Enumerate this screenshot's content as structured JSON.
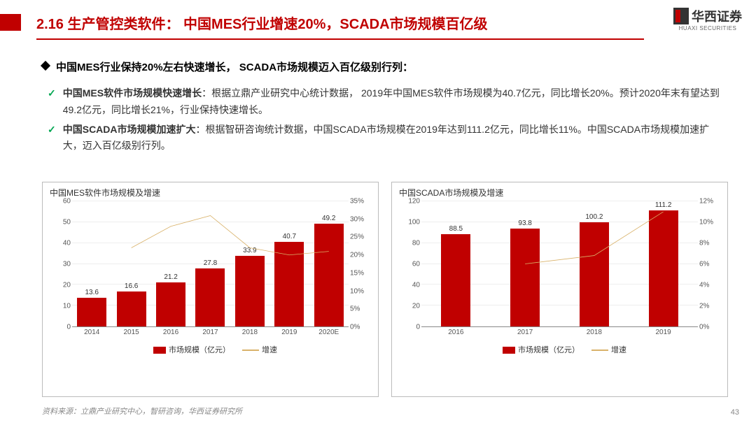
{
  "header": {
    "title": "2.16 生产管控类软件： 中国MES行业增速20%，SCADA市场规模百亿级",
    "logo_text": "华西证券",
    "logo_sub": "HUAXI SECURITIES"
  },
  "headline": "中国MES行业保持20%左右快速增长， SCADA市场规模迈入百亿级别行列：",
  "bullets": [
    {
      "bold": "中国MES软件市场规模快速增长",
      "rest": "：根据立鼎产业研究中心统计数据， 2019年中国MES软件市场规模为40.7亿元，同比增长20%。预计2020年末有望达到49.2亿元，同比增长21%，行业保持快速增长。"
    },
    {
      "bold": "中国SCADA市场规模加速扩大",
      "rest": "：根据智研咨询统计数据，中国SCADA市场规模在2019年达到111.2亿元，同比增长11%。中国SCADA市场规模加速扩大，迈入百亿级别行列。"
    }
  ],
  "chart_left": {
    "type": "bar+line",
    "title": "中国MES软件市场规模及增速",
    "categories": [
      "2014",
      "2015",
      "2016",
      "2017",
      "2018",
      "2019",
      "2020E"
    ],
    "bar_values": [
      13.6,
      16.6,
      21.2,
      27.8,
      33.9,
      40.7,
      49.2
    ],
    "bar_color": "#c00000",
    "y_left": {
      "min": 0,
      "max": 60,
      "step": 10
    },
    "line_values": [
      null,
      22,
      28,
      31,
      22,
      20,
      21
    ],
    "line_color": "#d9b26a",
    "y_right": {
      "min": 0,
      "max": 35,
      "step": 5,
      "suffix": "%"
    },
    "legend_bar": "市场规模（亿元）",
    "legend_line": "增速"
  },
  "chart_right": {
    "type": "bar+line",
    "title": "中国SCADA市场规模及增速",
    "categories": [
      "2016",
      "2017",
      "2018",
      "2019"
    ],
    "bar_values": [
      88.5,
      93.8,
      100.2,
      111.2
    ],
    "bar_color": "#c00000",
    "y_left": {
      "min": 0,
      "max": 120,
      "step": 20
    },
    "line_values": [
      null,
      6,
      6.8,
      11
    ],
    "line_color": "#d9b26a",
    "y_right": {
      "min": 0,
      "max": 12,
      "step": 2,
      "suffix": "%"
    },
    "legend_bar": "市场规模（亿元）",
    "legend_line": "增速"
  },
  "source": "资料来源：立鼎产业研究中心，智研咨询，华西证券研究所",
  "page_number": "43",
  "colors": {
    "accent": "#c00000",
    "line": "#d9b26a",
    "grid": "#eeeeee",
    "border": "#bbbbbb"
  }
}
